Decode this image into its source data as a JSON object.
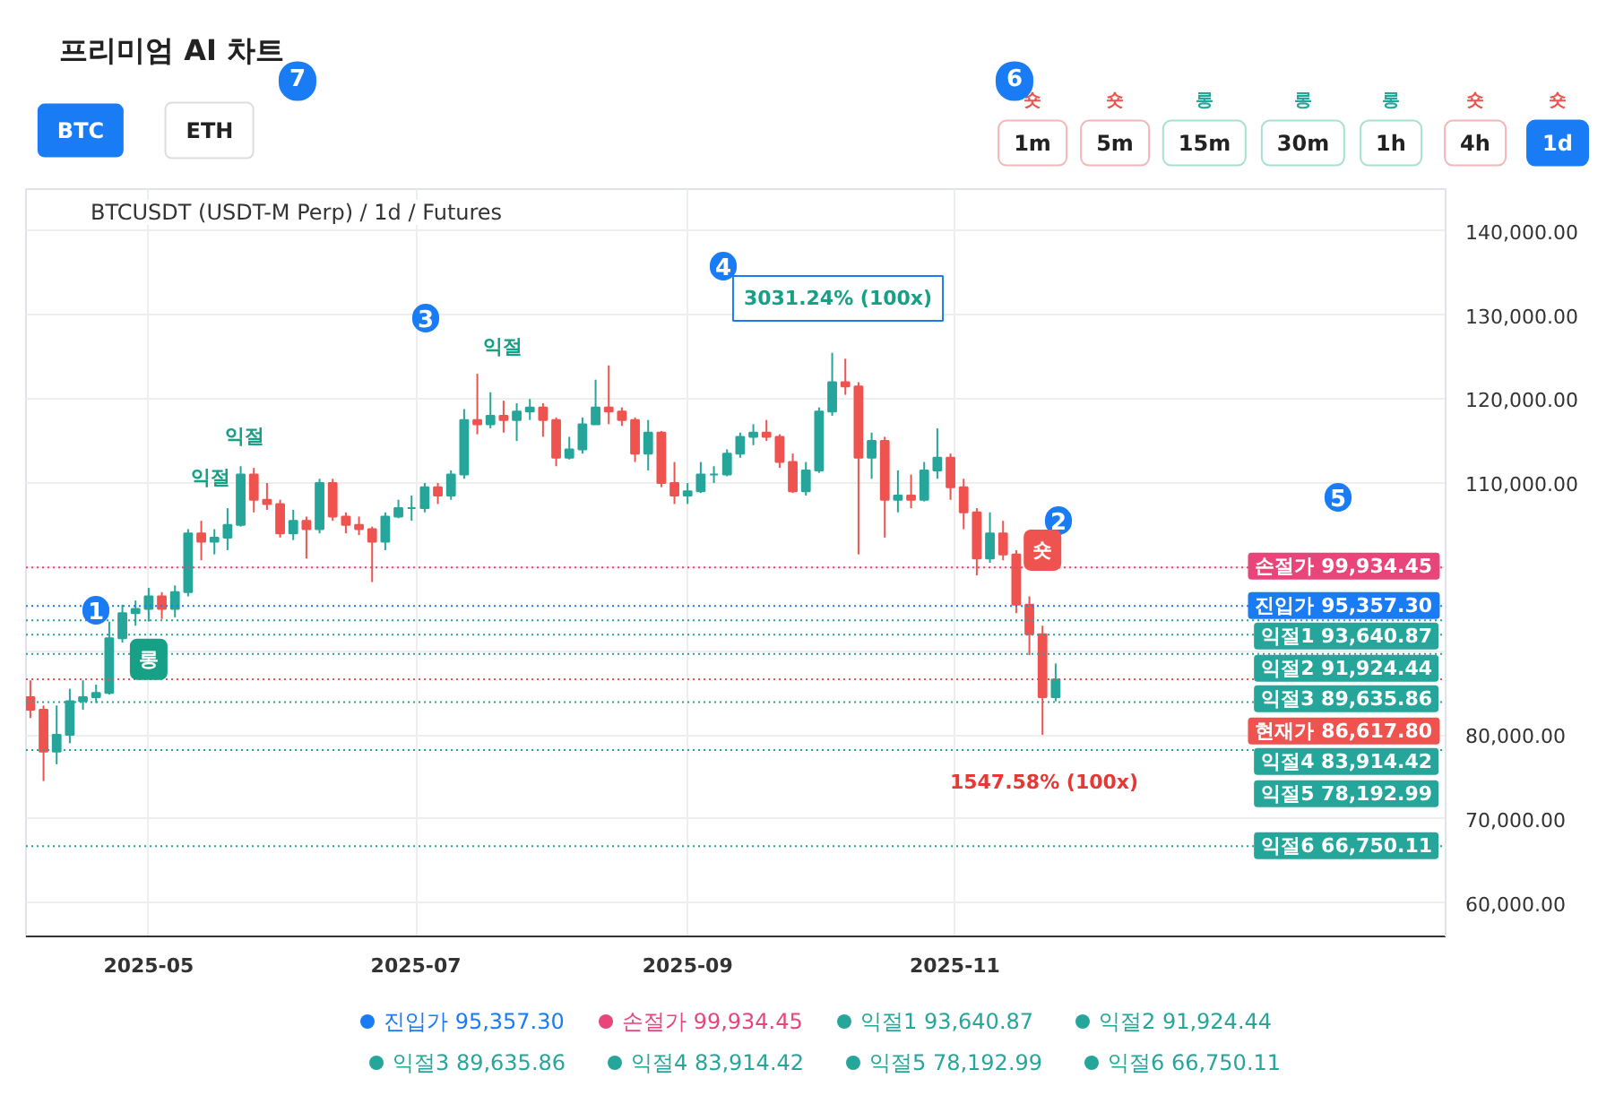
{
  "chart_data": {
    "type": "candlestick",
    "title": "프리미엄 AI 차트",
    "subtitle": "BTCUSDT (USDT-M Perp) / 1d / Futures",
    "x": [
      "2025-04-04",
      "2025-04-07",
      "2025-04-10",
      "2025-04-13",
      "2025-04-16",
      "2025-04-19",
      "2025-04-22",
      "2025-04-25",
      "2025-04-28",
      "2025-05-01",
      "2025-05-04",
      "2025-05-07",
      "2025-05-10",
      "2025-05-13",
      "2025-05-16",
      "2025-05-19",
      "2025-05-22",
      "2025-05-25",
      "2025-05-28",
      "2025-05-31",
      "2025-06-03",
      "2025-06-06",
      "2025-06-09",
      "2025-06-12",
      "2025-06-15",
      "2025-06-18",
      "2025-06-21",
      "2025-06-24",
      "2025-06-27",
      "2025-06-30",
      "2025-07-03",
      "2025-07-06",
      "2025-07-09",
      "2025-07-12",
      "2025-07-15",
      "2025-07-18",
      "2025-07-21",
      "2025-07-24",
      "2025-07-27",
      "2025-07-30",
      "2025-08-02",
      "2025-08-05",
      "2025-08-08",
      "2025-08-11",
      "2025-08-14",
      "2025-08-17",
      "2025-08-20",
      "2025-08-23",
      "2025-08-26",
      "2025-08-29",
      "2025-09-01",
      "2025-09-04",
      "2025-09-07",
      "2025-09-10",
      "2025-09-13",
      "2025-09-16",
      "2025-09-19",
      "2025-09-22",
      "2025-09-25",
      "2025-09-28",
      "2025-10-01",
      "2025-10-04",
      "2025-10-07",
      "2025-10-10",
      "2025-10-13",
      "2025-10-16",
      "2025-10-19",
      "2025-10-22",
      "2025-10-25",
      "2025-10-28",
      "2025-10-31",
      "2025-11-03",
      "2025-11-06",
      "2025-11-09",
      "2025-11-12",
      "2025-11-15",
      "2025-11-18",
      "2025-11-21",
      "2025-11-24"
    ],
    "ohlc": [
      [
        84500,
        86500,
        82000,
        83000
      ],
      [
        83000,
        83500,
        74500,
        78000
      ],
      [
        78000,
        83500,
        76500,
        80000
      ],
      [
        80000,
        85500,
        79000,
        84000
      ],
      [
        84000,
        86500,
        83000,
        84500
      ],
      [
        84500,
        86000,
        83800,
        85000
      ],
      [
        85000,
        93500,
        84800,
        91500
      ],
      [
        91500,
        95500,
        91000,
        94500
      ],
      [
        94500,
        96000,
        93000,
        95000
      ],
      [
        95000,
        97500,
        93500,
        96500
      ],
      [
        96500,
        97000,
        93800,
        95000
      ],
      [
        95000,
        97800,
        94000,
        97000
      ],
      [
        97000,
        104500,
        96500,
        104000
      ],
      [
        104000,
        105500,
        100800,
        103000
      ],
      [
        103000,
        104500,
        101500,
        103500
      ],
      [
        103500,
        107000,
        102000,
        105000
      ],
      [
        105000,
        112000,
        104800,
        111000
      ],
      [
        111000,
        111800,
        106500,
        108000
      ],
      [
        108000,
        110000,
        106800,
        107500
      ],
      [
        107500,
        108000,
        103500,
        104000
      ],
      [
        104000,
        106800,
        103200,
        105500
      ],
      [
        105500,
        106000,
        101000,
        104500
      ],
      [
        104500,
        110500,
        104000,
        110000
      ],
      [
        110000,
        110500,
        105500,
        106000
      ],
      [
        106000,
        106500,
        104000,
        105000
      ],
      [
        105000,
        106000,
        103800,
        104500
      ],
      [
        104500,
        104800,
        98200,
        103000
      ],
      [
        103000,
        106500,
        102000,
        106000
      ],
      [
        106000,
        108000,
        105800,
        107000
      ],
      [
        107000,
        108500,
        105500,
        107000
      ],
      [
        107000,
        110000,
        106500,
        109500
      ],
      [
        109500,
        110000,
        107500,
        108500
      ],
      [
        108500,
        111500,
        108000,
        111000
      ],
      [
        111000,
        118800,
        110500,
        117500
      ],
      [
        117500,
        123000,
        115800,
        117000
      ],
      [
        117000,
        120800,
        116500,
        118000
      ],
      [
        118000,
        119800,
        116000,
        117500
      ],
      [
        117500,
        119500,
        115000,
        118500
      ],
      [
        118500,
        120000,
        117500,
        119000
      ],
      [
        119000,
        119500,
        115500,
        117500
      ],
      [
        117500,
        117800,
        112000,
        113000
      ],
      [
        113000,
        115500,
        112800,
        114000
      ],
      [
        114000,
        117800,
        113500,
        117000
      ],
      [
        117000,
        122300,
        117000,
        119000
      ],
      [
        119000,
        124000,
        117000,
        118500
      ],
      [
        118500,
        119000,
        116800,
        117500
      ],
      [
        117500,
        117800,
        112500,
        113500
      ],
      [
        113500,
        117500,
        111500,
        116000
      ],
      [
        116000,
        116200,
        109500,
        110000
      ],
      [
        110000,
        112500,
        107500,
        108500
      ],
      [
        108500,
        110000,
        107500,
        109000
      ],
      [
        109000,
        112500,
        108800,
        111000
      ],
      [
        111000,
        112000,
        110000,
        111000
      ],
      [
        111000,
        114000,
        110800,
        113500
      ],
      [
        113500,
        116000,
        113000,
        115500
      ],
      [
        115500,
        117000,
        114500,
        116000
      ],
      [
        116000,
        117500,
        115000,
        115500
      ],
      [
        115500,
        115800,
        111800,
        112500
      ],
      [
        112500,
        113500,
        108800,
        109000
      ],
      [
        109000,
        112500,
        108500,
        111500
      ],
      [
        111500,
        119000,
        111200,
        118500
      ],
      [
        118500,
        125500,
        118000,
        122000
      ],
      [
        122000,
        124800,
        120500,
        121500
      ],
      [
        121500,
        122000,
        101500,
        113000
      ],
      [
        113000,
        116000,
        110500,
        115000
      ],
      [
        115000,
        115500,
        103500,
        108000
      ],
      [
        108000,
        111500,
        106500,
        108500
      ],
      [
        108500,
        111000,
        107000,
        108000
      ],
      [
        108000,
        112500,
        107800,
        111500
      ],
      [
        111500,
        116500,
        110500,
        113000
      ],
      [
        113000,
        113500,
        108000,
        109500
      ],
      [
        109500,
        110500,
        104500,
        106500
      ],
      [
        106500,
        107000,
        99000,
        101000
      ],
      [
        101000,
        106500,
        100500,
        104000
      ],
      [
        104000,
        105500,
        100800,
        101500
      ],
      [
        101500,
        102000,
        94500,
        95500
      ],
      [
        95500,
        96500,
        89500,
        92000
      ],
      [
        92000,
        93000,
        80000,
        84500
      ],
      [
        84500,
        88500,
        84000,
        86600
      ]
    ],
    "xlim": [
      "2025-04-03",
      "2026-02-21"
    ],
    "xticks": [
      {
        "value": "2025-05-01",
        "label": "2025-05"
      },
      {
        "value": "2025-07-01",
        "label": "2025-07"
      },
      {
        "value": "2025-09-01",
        "label": "2025-09"
      },
      {
        "value": "2025-11-01",
        "label": "2025-11"
      }
    ],
    "ylim": [
      56000,
      145000
    ],
    "yticks": [
      {
        "value": 60000,
        "label": "60,000.00"
      },
      {
        "value": 70000,
        "label": "70,000.00"
      },
      {
        "value": 80000,
        "label": "80,000.00"
      },
      {
        "value": 90000,
        "label": null
      },
      {
        "value": 100000,
        "label": null
      },
      {
        "value": 110000,
        "label": "110,000.00"
      },
      {
        "value": 120000,
        "label": "120,000.00"
      },
      {
        "value": 130000,
        "label": "130,000.00"
      },
      {
        "value": 140000,
        "label": "140,000.00"
      }
    ],
    "grid": true,
    "ref_lines": [
      {
        "axis": "y",
        "value": 95357.3,
        "label": "진입가 95,357.30",
        "color": "#1a7cf5",
        "line_style": "dotted"
      },
      {
        "axis": "y",
        "value": 99934.45,
        "label": "손절가 99,934.45",
        "color": "#e8457a",
        "line_style": "dotted"
      },
      {
        "axis": "y",
        "value": 93640.87,
        "label": "익절1 93,640.87",
        "color": "#26a69a",
        "line_style": "dotted"
      },
      {
        "axis": "y",
        "value": 91924.44,
        "label": "익절2 91,924.44",
        "color": "#26a69a",
        "line_style": "dotted"
      },
      {
        "axis": "y",
        "value": 89635.86,
        "label": "익절3 89,635.86",
        "color": "#26a69a",
        "line_style": "dotted"
      },
      {
        "axis": "y",
        "value": 83914.42,
        "label": "익절4 83,914.42",
        "color": "#26a69a",
        "line_style": "dotted"
      },
      {
        "axis": "y",
        "value": 78192.99,
        "label": "익절5 78,192.99",
        "color": "#26a69a",
        "line_style": "dotted"
      },
      {
        "axis": "y",
        "value": 66750.11,
        "label": "익절6 66,750.11",
        "color": "#26a69a",
        "line_style": "dotted"
      },
      {
        "axis": "y",
        "value": 86617.8,
        "label": "현재가 86,617.80",
        "color": "#ef5350",
        "line_style": "dotted"
      }
    ],
    "annotations": [
      "BTC",
      "ETH",
      "1m",
      "5m",
      "15m",
      "30m",
      "1h",
      "4h",
      "1d",
      "숏",
      "숏",
      "롱",
      "롱",
      "롱",
      "숏",
      "숏",
      "1",
      "2",
      "3",
      "4",
      "5",
      "6",
      "7",
      {
        "text": "롱",
        "x": "2025-05-01",
        "y": 89000
      },
      {
        "text": "숏",
        "x": "2025-11-21",
        "y": 102000
      },
      "익절",
      "익절",
      "익절",
      "3031.24% (100x)",
      "1547.58% (100x)"
    ],
    "legend": "right"
  }
}
